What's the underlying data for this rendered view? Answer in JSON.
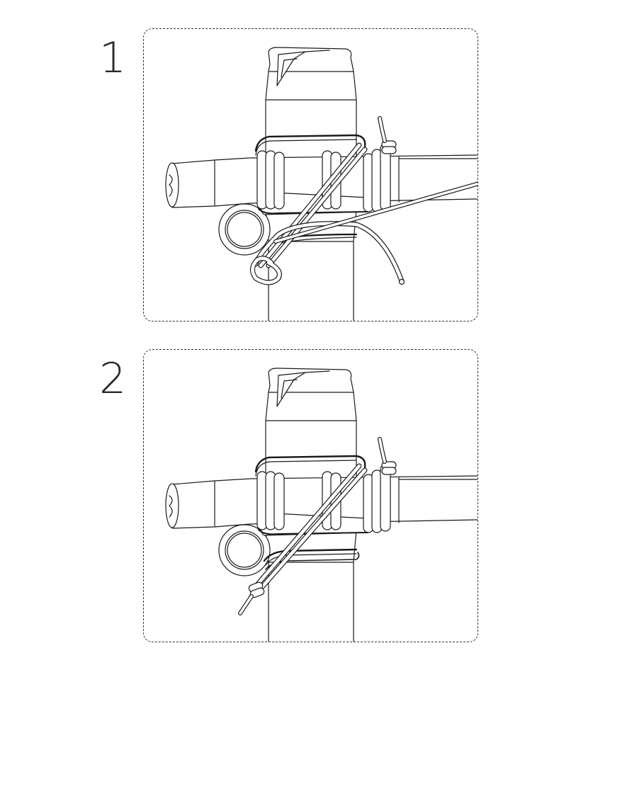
{
  "steps": [
    {
      "number": "1"
    },
    {
      "number": "2"
    }
  ],
  "colors": {
    "line": "#1a1a1a",
    "frame": "#333333",
    "fill": "#ffffff"
  }
}
